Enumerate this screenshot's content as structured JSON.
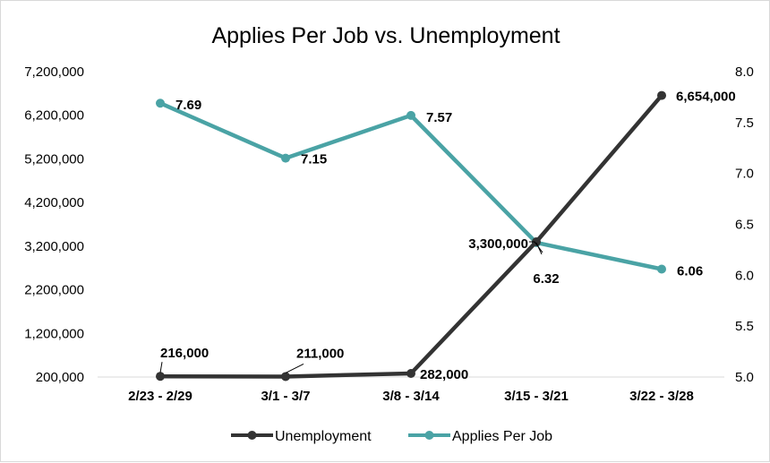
{
  "chart_data": {
    "type": "line",
    "title": "Applies Per Job vs. Unemployment",
    "categories": [
      "2/23 - 2/29",
      "3/1 - 3/7",
      "3/8 - 3/14",
      "3/15 - 3/21",
      "3/22 - 3/28"
    ],
    "series": [
      {
        "name": "Unemployment",
        "axis": "left",
        "color": "#333333",
        "values": [
          216000,
          211000,
          282000,
          3300000,
          6654000
        ],
        "labels": [
          "216,000",
          "211,000",
          "282,000",
          "3,300,000",
          "6,654,000"
        ]
      },
      {
        "name": "Applies Per Job",
        "axis": "right",
        "color": "#4aa3a5",
        "values": [
          7.69,
          7.15,
          7.57,
          6.32,
          6.06
        ],
        "labels": [
          "7.69",
          "7.15",
          "7.57",
          "6.32",
          "6.06"
        ]
      }
    ],
    "left_axis": {
      "min": 200000,
      "max": 7200000,
      "ticks": [
        200000,
        1200000,
        2200000,
        3200000,
        4200000,
        5200000,
        6200000,
        7200000
      ],
      "tick_labels": [
        "200,000",
        "1,200,000",
        "2,200,000",
        "3,200,000",
        "4,200,000",
        "5,200,000",
        "6,200,000",
        "7,200,000"
      ]
    },
    "right_axis": {
      "min": 5.0,
      "max": 8.0,
      "ticks": [
        5.0,
        5.5,
        6.0,
        6.5,
        7.0,
        7.5,
        8.0
      ],
      "tick_labels": [
        "5.0",
        "5.5",
        "6.0",
        "6.5",
        "7.0",
        "7.5",
        "8.0"
      ]
    },
    "grid": false,
    "legend": "bottom"
  }
}
